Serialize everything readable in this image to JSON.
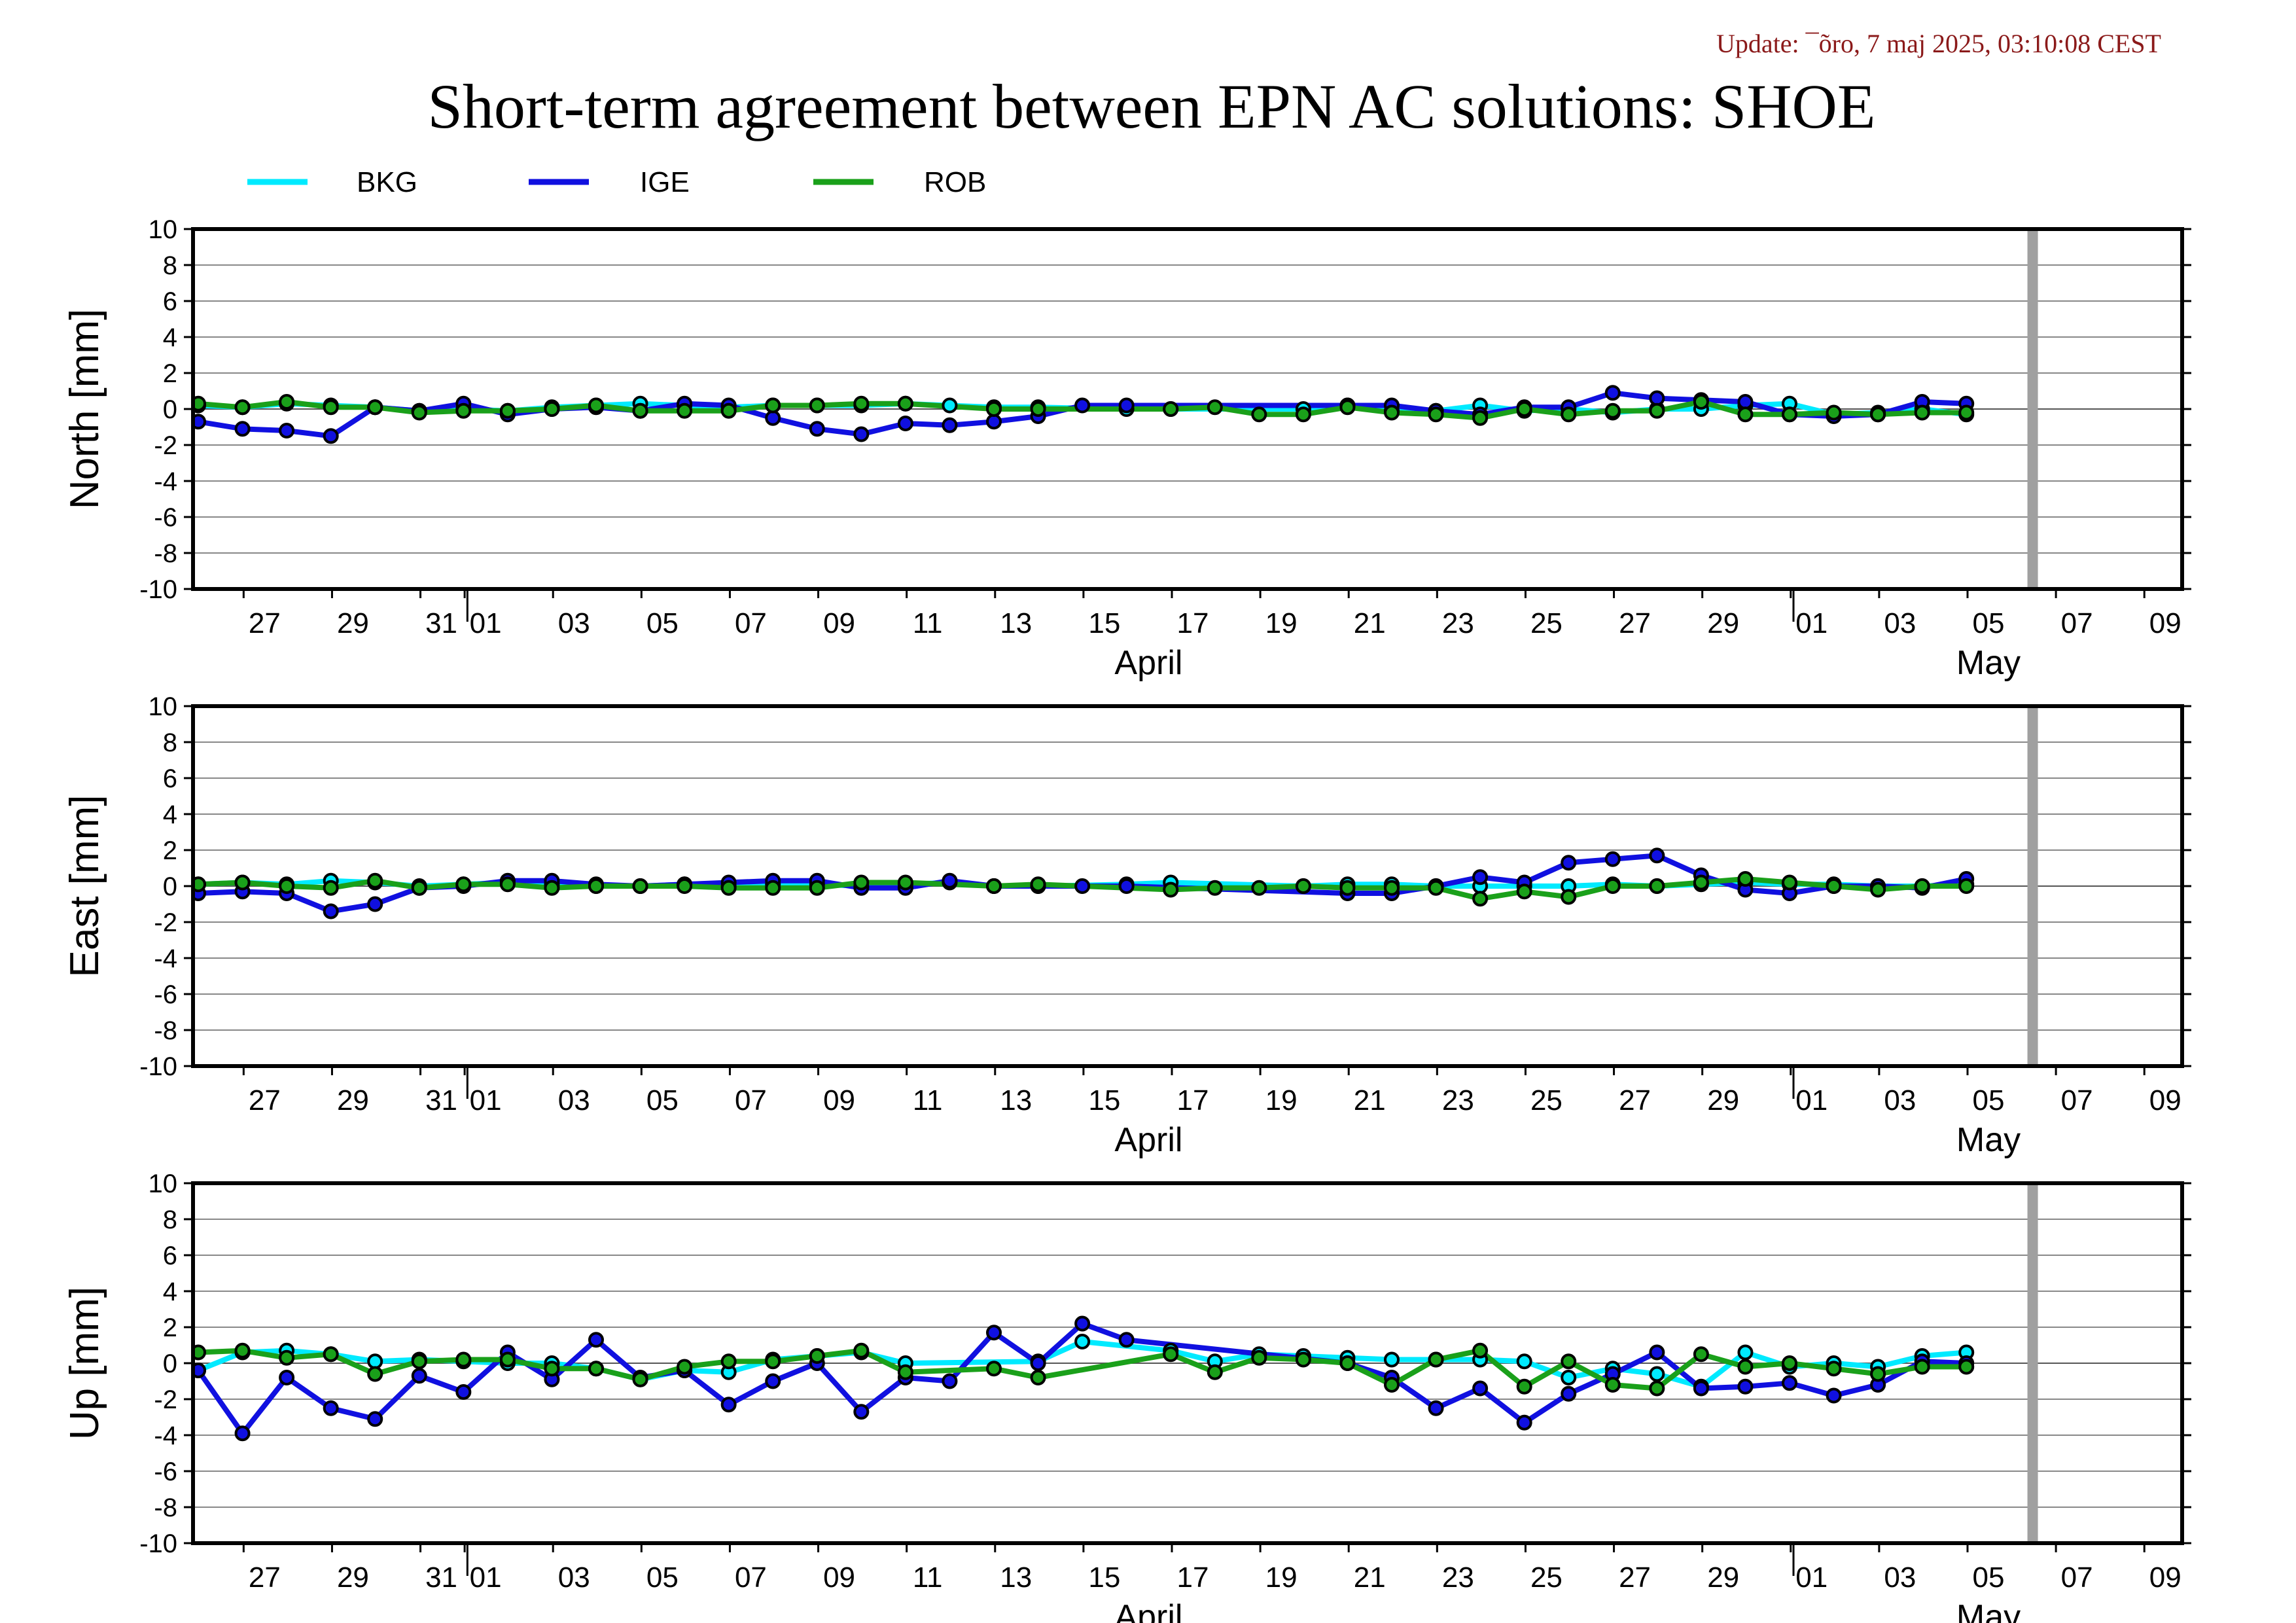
{
  "update_text": "Update: ¯õro, 7 maj 2025, 03:10:08 CEST",
  "title": "Short-term agreement between EPN AC solutions: SHOE",
  "colors": {
    "BKG": "#00eaff",
    "IGE": "#1010e0",
    "ROB": "#1aa01a",
    "now_marker": "#a0a0a0",
    "update_text": "#8b1a1a"
  },
  "chart_data": [
    {
      "type": "line",
      "ylabel": "North [mm]",
      "ylim": [
        -10,
        10
      ],
      "yticks": [
        10,
        8,
        6,
        4,
        2,
        0,
        -2,
        -4,
        -6,
        -8,
        -10
      ],
      "x_ticks": [
        "27",
        "29",
        "31",
        "01",
        "03",
        "05",
        "07",
        "09",
        "11",
        "13",
        "15",
        "17",
        "19",
        "21",
        "23",
        "25",
        "27",
        "29",
        "01",
        "03",
        "05",
        "07",
        "09"
      ],
      "month_labels": [
        "April",
        "May"
      ],
      "grid": true,
      "series": [
        {
          "name": "BKG",
          "x": [
            0,
            1,
            2,
            3,
            4,
            5,
            6,
            7,
            8,
            9,
            10,
            11,
            12,
            13,
            14,
            15,
            16,
            17,
            18,
            19,
            21,
            22,
            25,
            26,
            27,
            28,
            29,
            30,
            31,
            32,
            33,
            34,
            35,
            36,
            37,
            38,
            39,
            40
          ],
          "y": [
            0.2,
            0.1,
            0.3,
            0.2,
            0.1,
            -0.1,
            0.0,
            -0.1,
            0.1,
            0.2,
            0.3,
            0.2,
            0.1,
            0.2,
            0.2,
            0.2,
            0.3,
            0.2,
            0.1,
            0.1,
            0.0,
            0.0,
            0.0,
            0.2,
            -0.1,
            -0.1,
            0.2,
            -0.1,
            0.0,
            -0.2,
            0.0,
            0.0,
            0.2,
            0.3,
            -0.3,
            -0.2,
            0.0,
            -0.3
          ]
        },
        {
          "name": "IGE",
          "x": [
            0,
            1,
            2,
            3,
            4,
            5,
            6,
            7,
            8,
            9,
            10,
            11,
            12,
            13,
            14,
            15,
            16,
            17,
            18,
            19,
            20,
            21,
            26,
            27,
            28,
            29,
            30,
            31,
            32,
            33,
            34,
            35,
            36,
            37,
            38,
            39,
            40
          ],
          "y": [
            -0.7,
            -1.1,
            -1.2,
            -1.5,
            0.1,
            -0.1,
            0.3,
            -0.3,
            0.0,
            0.1,
            -0.1,
            0.3,
            0.2,
            -0.5,
            -1.1,
            -1.4,
            -0.8,
            -0.9,
            -0.7,
            -0.4,
            0.2,
            0.2,
            0.2,
            0.2,
            -0.1,
            -0.3,
            0.1,
            0.1,
            0.9,
            0.6,
            0.5,
            0.4,
            -0.3,
            -0.4,
            -0.3,
            0.4,
            0.3
          ]
        },
        {
          "name": "ROB",
          "x": [
            0,
            1,
            2,
            3,
            4,
            5,
            6,
            7,
            8,
            9,
            10,
            11,
            12,
            13,
            14,
            15,
            16,
            18,
            19,
            22,
            23,
            24,
            25,
            26,
            27,
            28,
            29,
            30,
            31,
            32,
            33,
            34,
            35,
            36,
            37,
            38,
            39,
            40
          ],
          "y": [
            0.3,
            0.1,
            0.4,
            0.1,
            0.1,
            -0.2,
            -0.1,
            -0.1,
            0.0,
            0.2,
            -0.1,
            -0.1,
            -0.1,
            0.2,
            0.2,
            0.3,
            0.3,
            0.0,
            0.0,
            0.0,
            0.1,
            -0.3,
            -0.3,
            0.1,
            -0.2,
            -0.3,
            -0.5,
            0.0,
            -0.3,
            -0.1,
            -0.1,
            0.4,
            -0.3,
            -0.3,
            -0.2,
            -0.3,
            -0.2,
            -0.2
          ]
        }
      ]
    },
    {
      "type": "line",
      "ylabel": "East [mm]",
      "ylim": [
        -10,
        10
      ],
      "yticks": [
        10,
        8,
        6,
        4,
        2,
        0,
        -2,
        -4,
        -6,
        -8,
        -10
      ],
      "x_ticks": [
        "27",
        "29",
        "31",
        "01",
        "03",
        "05",
        "07",
        "09",
        "11",
        "13",
        "15",
        "17",
        "19",
        "21",
        "23",
        "25",
        "27",
        "29",
        "01",
        "03",
        "05",
        "07",
        "09"
      ],
      "month_labels": [
        "April",
        "May"
      ],
      "grid": true,
      "series": [
        {
          "name": "BKG",
          "x": [
            0,
            1,
            2,
            3,
            4,
            5,
            6,
            7,
            8,
            9,
            10,
            11,
            12,
            13,
            14,
            15,
            16,
            17,
            18,
            19,
            21,
            22,
            25,
            26,
            27,
            28,
            29,
            30,
            31,
            32,
            33,
            34,
            35,
            36,
            37,
            38,
            39,
            40
          ],
          "y": [
            0.1,
            0.2,
            0.1,
            0.3,
            0.2,
            0.0,
            0.1,
            0.2,
            0.1,
            0.0,
            0.0,
            0.1,
            0.0,
            0.1,
            0.1,
            0.0,
            0.1,
            0.2,
            0.0,
            0.0,
            0.1,
            0.2,
            0.0,
            0.1,
            0.1,
            0.0,
            0.0,
            0.0,
            0.0,
            0.1,
            0.0,
            0.1,
            0.2,
            0.1,
            0.1,
            0.0,
            0.0,
            0.1
          ]
        },
        {
          "name": "IGE",
          "x": [
            0,
            1,
            2,
            3,
            4,
            5,
            6,
            7,
            8,
            9,
            10,
            11,
            12,
            13,
            14,
            15,
            16,
            17,
            18,
            19,
            20,
            21,
            26,
            27,
            28,
            29,
            30,
            31,
            32,
            33,
            34,
            35,
            36,
            37,
            38,
            39,
            40
          ],
          "y": [
            -0.4,
            -0.3,
            -0.4,
            -1.4,
            -1.0,
            -0.1,
            0.0,
            0.3,
            0.3,
            0.1,
            0.0,
            0.1,
            0.2,
            0.3,
            0.3,
            -0.1,
            -0.1,
            0.3,
            0.0,
            0.0,
            0.0,
            0.0,
            -0.4,
            -0.4,
            -0.0,
            0.5,
            0.2,
            1.3,
            1.5,
            1.7,
            0.6,
            -0.2,
            -0.4,
            0.0,
            0.0,
            -0.1,
            0.4
          ]
        },
        {
          "name": "ROB",
          "x": [
            0,
            1,
            2,
            3,
            4,
            5,
            6,
            7,
            8,
            9,
            10,
            11,
            12,
            13,
            14,
            15,
            16,
            18,
            19,
            22,
            23,
            24,
            25,
            26,
            27,
            28,
            29,
            30,
            31,
            32,
            33,
            34,
            35,
            36,
            37,
            38,
            39,
            40
          ],
          "y": [
            0.1,
            0.2,
            0.0,
            -0.1,
            0.3,
            -0.1,
            0.1,
            0.1,
            -0.1,
            0.0,
            0.0,
            0.0,
            -0.1,
            -0.1,
            -0.1,
            0.2,
            0.2,
            0.0,
            0.1,
            -0.2,
            -0.1,
            -0.1,
            0.0,
            -0.1,
            -0.1,
            -0.1,
            -0.7,
            -0.3,
            -0.6,
            0.0,
            0.0,
            0.2,
            0.4,
            0.2,
            0.0,
            -0.2,
            0.0,
            0.0
          ]
        }
      ]
    },
    {
      "type": "line",
      "ylabel": "Up [mm]",
      "ylim": [
        -10,
        10
      ],
      "yticks": [
        10,
        8,
        6,
        4,
        2,
        0,
        -2,
        -4,
        -6,
        -8,
        -10
      ],
      "x_ticks": [
        "27",
        "29",
        "31",
        "01",
        "03",
        "05",
        "07",
        "09",
        "11",
        "13",
        "15",
        "17",
        "19",
        "21",
        "23",
        "25",
        "27",
        "29",
        "01",
        "03",
        "05",
        "07",
        "09"
      ],
      "month_labels": [
        "April",
        "May"
      ],
      "grid": true,
      "series": [
        {
          "name": "BKG",
          "x": [
            0,
            1,
            2,
            3,
            4,
            5,
            6,
            7,
            8,
            9,
            10,
            11,
            12,
            13,
            14,
            15,
            16,
            19,
            20,
            22,
            23,
            24,
            25,
            26,
            27,
            28,
            29,
            30,
            31,
            32,
            33,
            34,
            35,
            36,
            37,
            38,
            39,
            40
          ],
          "y": [
            -0.4,
            0.6,
            0.7,
            0.5,
            0.1,
            0.2,
            0.1,
            0.0,
            0.0,
            -0.3,
            -0.9,
            -0.4,
            -0.5,
            0.2,
            0.4,
            0.6,
            0.0,
            0.1,
            1.2,
            0.7,
            0.1,
            0.5,
            0.4,
            0.3,
            0.2,
            0.2,
            0.2,
            0.1,
            -0.8,
            -0.3,
            -0.6,
            -1.3,
            0.6,
            -0.2,
            0.0,
            -0.2,
            0.4,
            0.6
          ]
        },
        {
          "name": "IGE",
          "x": [
            0,
            1,
            2,
            3,
            4,
            5,
            6,
            7,
            8,
            9,
            10,
            11,
            12,
            13,
            14,
            15,
            16,
            17,
            18,
            19,
            20,
            21,
            26,
            27,
            28,
            29,
            30,
            31,
            32,
            33,
            34,
            35,
            36,
            37,
            38,
            39,
            40
          ],
          "y": [
            -0.4,
            -3.9,
            -0.8,
            -2.5,
            -3.1,
            -0.7,
            -1.6,
            0.6,
            -0.9,
            1.3,
            -0.8,
            -0.4,
            -2.3,
            -1.0,
            0.0,
            -2.7,
            -0.8,
            -1.0,
            1.7,
            0.0,
            2.2,
            1.3,
            0.0,
            -0.8,
            -2.5,
            -1.4,
            -3.3,
            -1.7,
            -0.6,
            0.6,
            -1.4,
            -1.3,
            -1.1,
            -1.8,
            -1.2,
            0.1,
            0.0
          ]
        },
        {
          "name": "ROB",
          "x": [
            0,
            1,
            2,
            3,
            4,
            5,
            6,
            7,
            8,
            9,
            10,
            11,
            12,
            13,
            14,
            15,
            16,
            18,
            19,
            22,
            23,
            24,
            25,
            26,
            27,
            28,
            29,
            30,
            31,
            32,
            33,
            34,
            35,
            36,
            37,
            38,
            39,
            40
          ],
          "y": [
            0.6,
            0.7,
            0.3,
            0.5,
            -0.6,
            0.1,
            0.2,
            0.2,
            -0.3,
            -0.3,
            -0.9,
            -0.2,
            0.1,
            0.1,
            0.4,
            0.7,
            -0.5,
            -0.3,
            -0.8,
            0.5,
            -0.5,
            0.3,
            0.2,
            0.0,
            -1.2,
            0.2,
            0.7,
            -1.3,
            0.1,
            -1.2,
            -1.4,
            0.5,
            -0.2,
            0.0,
            -0.3,
            -0.6,
            -0.2,
            -0.2
          ]
        }
      ]
    }
  ],
  "_x_axis_note_removed": true
}
